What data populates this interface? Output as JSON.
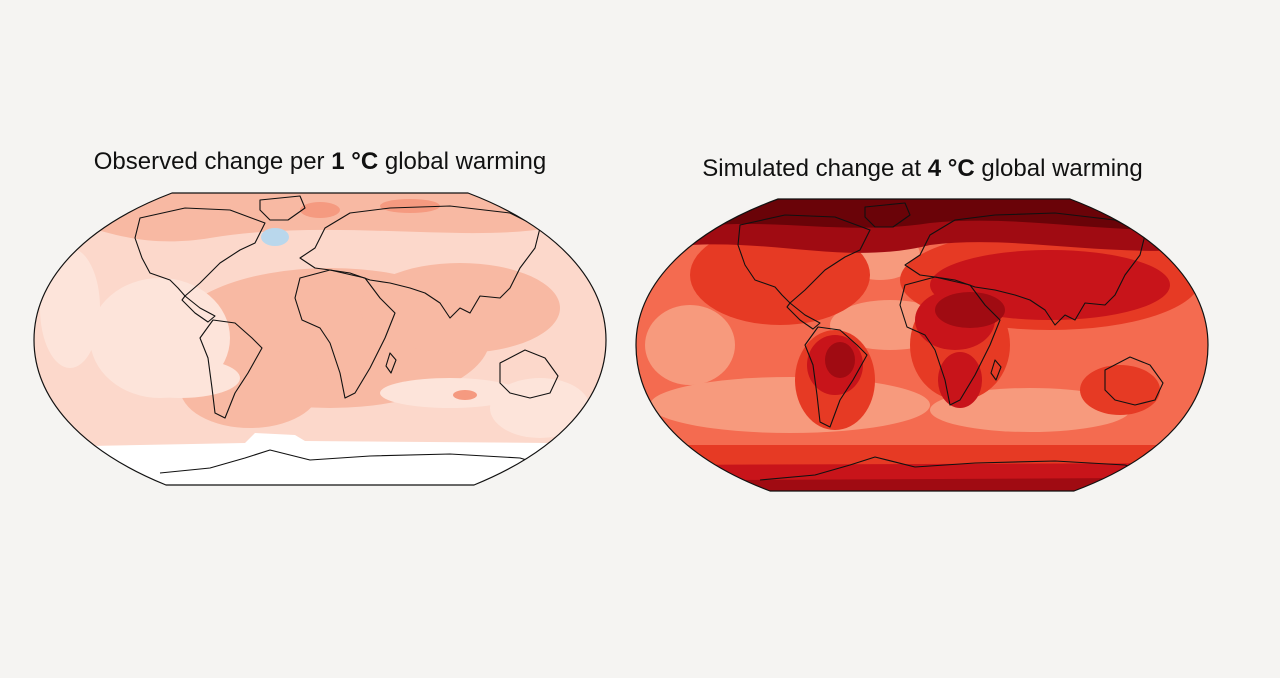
{
  "maps": [
    {
      "title_pre": "Observed change per ",
      "title_bold": "1 °C",
      "title_post": " global warming",
      "palette": {
        "base": "#fcd8cb",
        "light": "#fde4da",
        "medium": "#f8b9a3",
        "strong": "#f59a80",
        "cool_anomaly": "#b9d7ec",
        "no_data": "#ffffff"
      }
    },
    {
      "title_pre": "Simulated change at ",
      "title_bold": "4 °C",
      "title_post": " global warming",
      "palette": {
        "base": "#f46b50",
        "light": "#f79a7d",
        "medium": "#e63a24",
        "strong": "#c8141a",
        "very_strong": "#a00b12",
        "extreme": "#6a0308"
      }
    }
  ]
}
